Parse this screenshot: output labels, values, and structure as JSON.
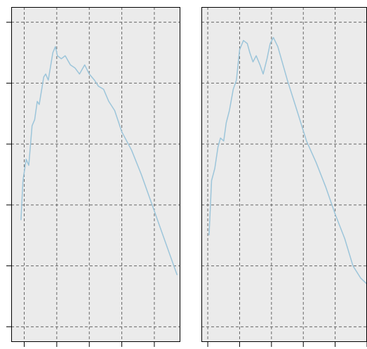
{
  "chart_data": [
    {
      "type": "line",
      "title": "",
      "xlabel": "",
      "ylabel": "",
      "xlim": [
        0,
        26
      ],
      "ylim": [
        -0.5,
        10.5
      ],
      "xticks": [
        2,
        7,
        12,
        17,
        22,
        27
      ],
      "yticks": [
        0,
        2,
        4,
        6,
        8,
        10
      ],
      "grid": true,
      "line_color": "#9cc5da",
      "background": "#ebebeb",
      "series": [
        {
          "name": "",
          "x": [
            1.5,
            1.8,
            2.3,
            2.7,
            3.2,
            3.6,
            4.0,
            4.3,
            5.0,
            5.3,
            5.7,
            6.4,
            6.8,
            7.1,
            7.7,
            8.3,
            9.1,
            9.8,
            10.5,
            11.3,
            12.0,
            12.8,
            13.4,
            14.2,
            15.0,
            15.9,
            17.0,
            18.5,
            20.0,
            21.5,
            23.0,
            24.5,
            25.5
          ],
          "y": [
            3.5,
            4.8,
            5.5,
            5.3,
            6.6,
            6.8,
            7.4,
            7.3,
            8.2,
            8.3,
            8.1,
            9.0,
            9.2,
            8.9,
            8.8,
            8.9,
            8.6,
            8.5,
            8.3,
            8.6,
            8.3,
            8.1,
            7.9,
            7.8,
            7.4,
            7.1,
            6.4,
            5.8,
            5.0,
            4.1,
            3.2,
            2.3,
            1.7
          ]
        }
      ]
    },
    {
      "type": "line",
      "title": "",
      "xlabel": "",
      "ylabel": "",
      "xlim": [
        0,
        26
      ],
      "ylim": [
        -0.5,
        10.5
      ],
      "xticks": [
        1,
        6,
        11,
        16,
        21,
        26
      ],
      "yticks": [
        0,
        2,
        4,
        6,
        8,
        10
      ],
      "grid": true,
      "line_color": "#9cc5da",
      "background": "#ebebeb",
      "series": [
        {
          "name": "",
          "x": [
            1.2,
            1.6,
            2.1,
            2.6,
            3.0,
            3.5,
            3.9,
            4.4,
            5.0,
            5.5,
            6.0,
            6.6,
            7.2,
            7.6,
            8.1,
            8.6,
            9.2,
            9.7,
            10.3,
            10.8,
            11.3,
            12.0,
            13.5,
            15.0,
            16.5,
            18.0,
            19.5,
            21.0,
            22.5,
            23.8,
            25.0,
            26.0
          ],
          "y": [
            3.0,
            4.8,
            5.2,
            5.9,
            6.2,
            6.1,
            6.7,
            7.1,
            7.8,
            8.1,
            9.1,
            9.4,
            9.3,
            9.0,
            8.7,
            8.9,
            8.6,
            8.3,
            8.8,
            9.3,
            9.5,
            9.2,
            8.1,
            7.1,
            6.1,
            5.4,
            4.6,
            3.7,
            2.9,
            2.0,
            1.6,
            1.4
          ]
        }
      ]
    }
  ]
}
